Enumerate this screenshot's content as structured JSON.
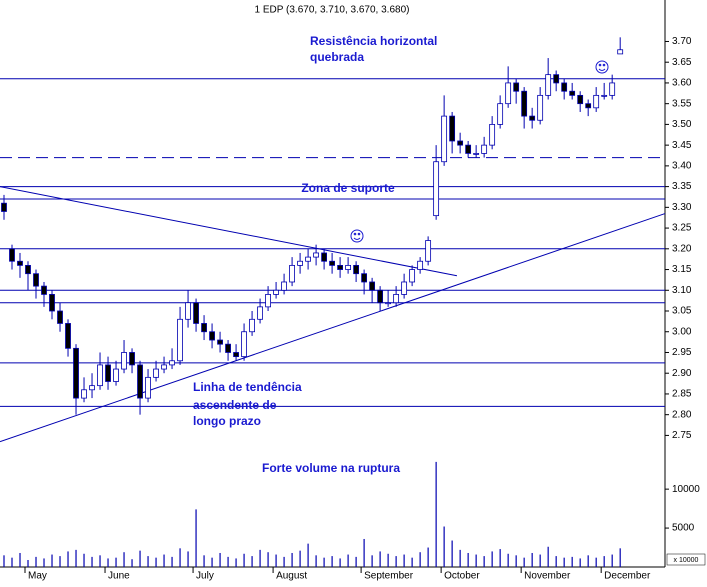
{
  "chart_data": {
    "type": "candlestick",
    "title": "1 EDP (3.670, 3.710, 3.670, 3.680)",
    "color": "#0000b0",
    "categories": [
      null,
      null,
      null,
      "May",
      null,
      null,
      null,
      null,
      null,
      null,
      null,
      null,
      null,
      "June",
      null,
      null,
      null,
      null,
      null,
      null,
      null,
      null,
      null,
      null,
      "July",
      null,
      null,
      null,
      null,
      null,
      null,
      null,
      null,
      null,
      "August",
      null,
      null,
      null,
      null,
      null,
      null,
      null,
      null,
      null,
      null,
      "September",
      null,
      null,
      null,
      null,
      null,
      null,
      null,
      null,
      null,
      "October",
      null,
      null,
      null,
      null,
      null,
      null,
      null,
      null,
      null,
      "November",
      null,
      null,
      null,
      null,
      null,
      null,
      null,
      null,
      null,
      "December",
      null,
      null
    ],
    "ohlc": [
      [
        3.31,
        3.33,
        3.27,
        3.29
      ],
      [
        3.2,
        3.21,
        3.15,
        3.17
      ],
      [
        3.17,
        3.19,
        3.13,
        3.16
      ],
      [
        3.16,
        3.17,
        3.1,
        3.14
      ],
      [
        3.14,
        3.15,
        3.08,
        3.11
      ],
      [
        3.11,
        3.12,
        3.06,
        3.09
      ],
      [
        3.09,
        3.1,
        3.03,
        3.05
      ],
      [
        3.05,
        3.07,
        3.0,
        3.02
      ],
      [
        3.02,
        3.03,
        2.94,
        2.96
      ],
      [
        2.96,
        2.97,
        2.8,
        2.84
      ],
      [
        2.84,
        2.89,
        2.83,
        2.86
      ],
      [
        2.86,
        2.9,
        2.84,
        2.87
      ],
      [
        2.87,
        2.95,
        2.86,
        2.92
      ],
      [
        2.92,
        2.94,
        2.86,
        2.88
      ],
      [
        2.88,
        2.93,
        2.87,
        2.91
      ],
      [
        2.91,
        2.98,
        2.9,
        2.95
      ],
      [
        2.95,
        2.96,
        2.9,
        2.92
      ],
      [
        2.92,
        2.93,
        2.8,
        2.84
      ],
      [
        2.84,
        2.91,
        2.83,
        2.89
      ],
      [
        2.89,
        2.93,
        2.88,
        2.91
      ],
      [
        2.91,
        2.94,
        2.9,
        2.92
      ],
      [
        2.92,
        2.96,
        2.91,
        2.93
      ],
      [
        2.93,
        3.06,
        2.92,
        3.03
      ],
      [
        3.03,
        3.1,
        3.01,
        3.07
      ],
      [
        3.07,
        3.08,
        3.0,
        3.02
      ],
      [
        3.02,
        3.04,
        2.98,
        3.0
      ],
      [
        3.0,
        3.02,
        2.96,
        2.98
      ],
      [
        2.98,
        3.0,
        2.95,
        2.97
      ],
      [
        2.97,
        2.98,
        2.93,
        2.95
      ],
      [
        2.95,
        2.97,
        2.93,
        2.94
      ],
      [
        2.94,
        3.02,
        2.93,
        3.0
      ],
      [
        3.0,
        3.05,
        2.99,
        3.03
      ],
      [
        3.03,
        3.08,
        3.02,
        3.06
      ],
      [
        3.06,
        3.11,
        3.05,
        3.09
      ],
      [
        3.09,
        3.12,
        3.08,
        3.1
      ],
      [
        3.1,
        3.14,
        3.09,
        3.12
      ],
      [
        3.12,
        3.18,
        3.11,
        3.16
      ],
      [
        3.16,
        3.19,
        3.14,
        3.17
      ],
      [
        3.17,
        3.2,
        3.15,
        3.18
      ],
      [
        3.18,
        3.21,
        3.16,
        3.19
      ],
      [
        3.19,
        3.2,
        3.15,
        3.17
      ],
      [
        3.17,
        3.19,
        3.14,
        3.16
      ],
      [
        3.16,
        3.18,
        3.13,
        3.15
      ],
      [
        3.15,
        3.18,
        3.14,
        3.16
      ],
      [
        3.16,
        3.17,
        3.12,
        3.14
      ],
      [
        3.14,
        3.15,
        3.09,
        3.12
      ],
      [
        3.12,
        3.13,
        3.07,
        3.1
      ],
      [
        3.1,
        3.11,
        3.05,
        3.07
      ],
      [
        3.07,
        3.1,
        3.06,
        3.07
      ],
      [
        3.07,
        3.11,
        3.06,
        3.09
      ],
      [
        3.09,
        3.14,
        3.08,
        3.12
      ],
      [
        3.12,
        3.16,
        3.11,
        3.15
      ],
      [
        3.15,
        3.18,
        3.14,
        3.17
      ],
      [
        3.17,
        3.23,
        3.16,
        3.22
      ],
      [
        3.28,
        3.45,
        3.27,
        3.41
      ],
      [
        3.41,
        3.57,
        3.4,
        3.52
      ],
      [
        3.52,
        3.53,
        3.43,
        3.46
      ],
      [
        3.46,
        3.48,
        3.43,
        3.45
      ],
      [
        3.45,
        3.46,
        3.42,
        3.43
      ],
      [
        3.43,
        3.45,
        3.42,
        3.43
      ],
      [
        3.43,
        3.47,
        3.42,
        3.45
      ],
      [
        3.45,
        3.52,
        3.44,
        3.5
      ],
      [
        3.5,
        3.57,
        3.49,
        3.55
      ],
      [
        3.55,
        3.64,
        3.54,
        3.6
      ],
      [
        3.6,
        3.61,
        3.55,
        3.58
      ],
      [
        3.58,
        3.59,
        3.49,
        3.52
      ],
      [
        3.52,
        3.54,
        3.49,
        3.51
      ],
      [
        3.51,
        3.59,
        3.5,
        3.57
      ],
      [
        3.57,
        3.66,
        3.56,
        3.62
      ],
      [
        3.62,
        3.63,
        3.58,
        3.6
      ],
      [
        3.6,
        3.61,
        3.56,
        3.58
      ],
      [
        3.58,
        3.6,
        3.56,
        3.57
      ],
      [
        3.57,
        3.58,
        3.53,
        3.55
      ],
      [
        3.55,
        3.56,
        3.52,
        3.54
      ],
      [
        3.54,
        3.59,
        3.53,
        3.57
      ],
      [
        3.57,
        3.6,
        3.56,
        3.57
      ],
      [
        3.57,
        3.62,
        3.56,
        3.6
      ],
      [
        3.67,
        3.71,
        3.67,
        3.68
      ]
    ],
    "volume": [
      1500,
      1200,
      1800,
      900,
      1300,
      1100,
      1600,
      1400,
      2000,
      2200,
      1700,
      1300,
      1500,
      1100,
      1200,
      1900,
      1000,
      2100,
      1400,
      1200,
      1600,
      1300,
      2400,
      2000,
      7400,
      1500,
      1200,
      1800,
      1300,
      1100,
      1700,
      1400,
      2200,
      1900,
      1600,
      1300,
      1800,
      2100,
      3000,
      1500,
      1200,
      1400,
      1100,
      1600,
      1300,
      3600,
      1500,
      2000,
      1700,
      1400,
      1600,
      1200,
      1900,
      2500,
      13500,
      5200,
      3400,
      2200,
      1800,
      1600,
      1400,
      2000,
      2300,
      1700,
      1500,
      1200,
      1800,
      1600,
      2600,
      1400,
      1200,
      1300,
      1100,
      1500,
      1200,
      1400,
      1600,
      2400
    ],
    "xlim": [
      -0.5,
      82.6
    ],
    "ylim": [
      2.71,
      3.8
    ],
    "yticks": [
      2.75,
      {
        "value": 2.8,
        "label": "2.80"
      },
      2.85,
      {
        "value": 2.9,
        "label": "2.90"
      },
      2.95,
      {
        "value": 3.0,
        "label": "3.00"
      },
      3.05,
      {
        "value": 3.1,
        "label": "3.10"
      },
      3.15,
      {
        "value": 3.2,
        "label": "3.20"
      },
      3.25,
      {
        "value": 3.3,
        "label": "3.30"
      },
      3.35,
      {
        "value": 3.4,
        "label": "3.40"
      },
      3.45,
      {
        "value": 3.5,
        "label": "3.50"
      },
      3.55,
      {
        "value": 3.6,
        "label": "3.60"
      },
      3.65,
      {
        "value": 3.7,
        "label": "3.70"
      }
    ],
    "y2lim": [
      0,
      14000
    ],
    "y2ticks": [
      5000,
      10000
    ],
    "volume_unit": "x 10000",
    "hlines": [
      {
        "value": 3.61,
        "style": "solid"
      },
      {
        "value": 3.42,
        "style": "dashed"
      },
      {
        "value": 3.35,
        "style": "solid"
      },
      {
        "value": 3.32,
        "style": "solid"
      },
      {
        "value": 3.2,
        "style": "solid"
      },
      {
        "value": 3.1,
        "style": "solid"
      },
      {
        "value": 3.07,
        "style": "solid"
      },
      {
        "value": 2.925,
        "style": "solid"
      },
      {
        "value": 2.82,
        "style": "solid"
      }
    ],
    "trendlines": [
      {
        "x": [
          -0.5,
          56.6
        ],
        "y": [
          3.35,
          3.135
        ]
      },
      {
        "x": [
          -0.5,
          82.6
        ],
        "y": [
          2.735,
          3.285
        ]
      }
    ],
    "annotations": [
      "Resistência horizontal",
      "quebrada",
      "Zona de suporte",
      "Linha de tendência",
      "ascendente de",
      "longo prazo",
      "Forte volume na ruptura"
    ]
  }
}
